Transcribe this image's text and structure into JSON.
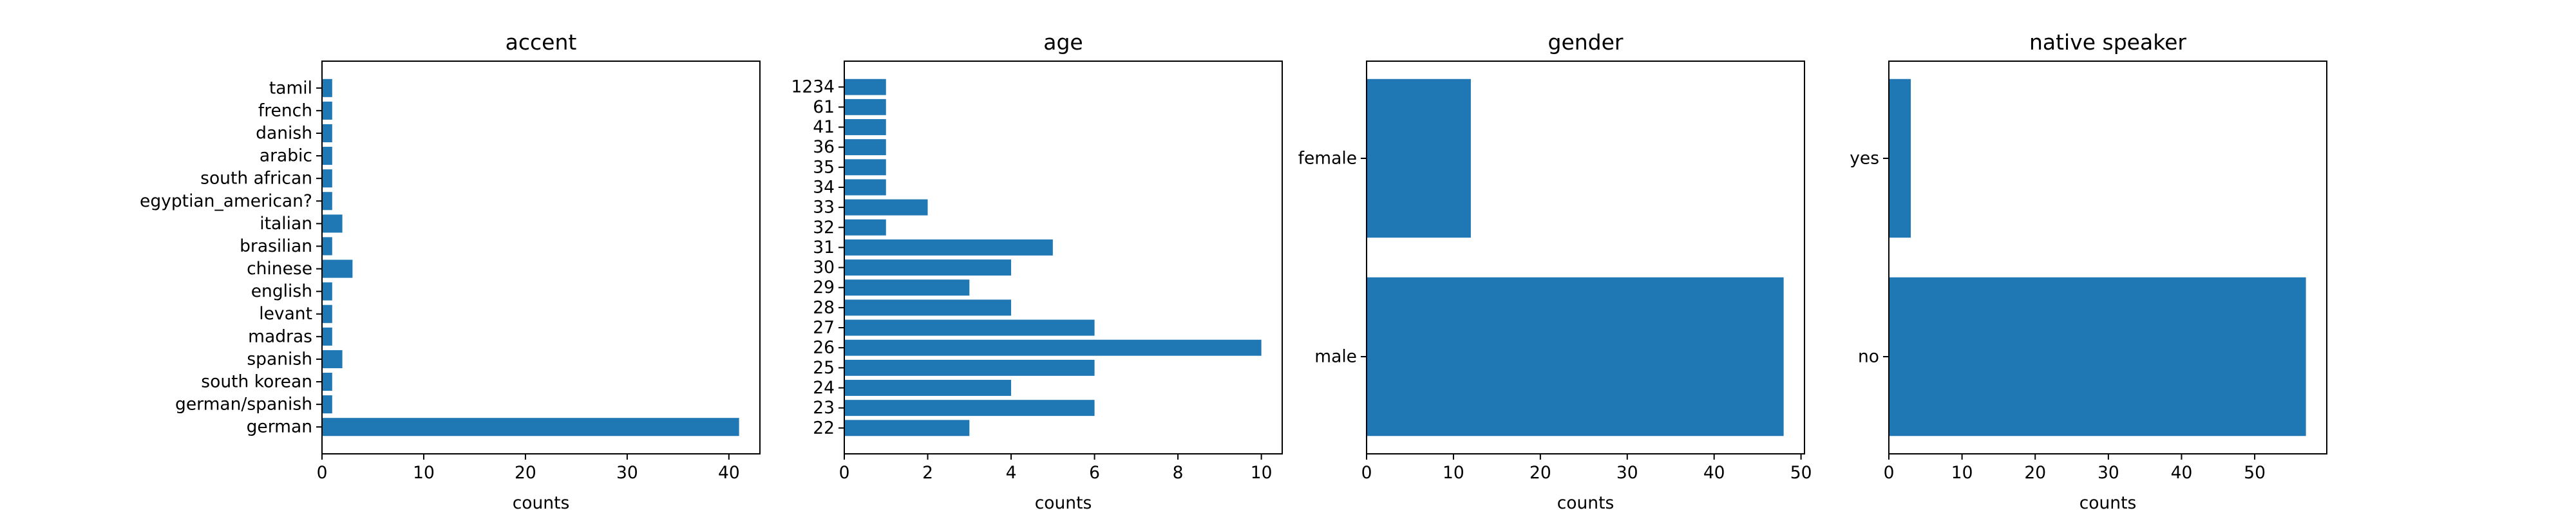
{
  "colors": {
    "bar": "#1f77b4",
    "axis": "#000000",
    "background": "#ffffff"
  },
  "chart_data": [
    {
      "type": "bar",
      "orientation": "horizontal",
      "title": "accent",
      "xlabel": "counts",
      "ylabel": "",
      "categories": [
        "german",
        "german/spanish",
        "south korean",
        "spanish",
        "madras",
        "levant",
        "english",
        "chinese",
        "brasilian",
        "italian",
        "egyptian_american?",
        "south african",
        "arabic",
        "danish",
        "french",
        "tamil"
      ],
      "values": [
        41,
        1,
        1,
        2,
        1,
        1,
        1,
        3,
        1,
        2,
        1,
        1,
        1,
        1,
        1,
        1
      ],
      "xlim": [
        0,
        43.05
      ],
      "xticks": [
        0,
        10,
        20,
        30,
        40
      ],
      "grid": false
    },
    {
      "type": "bar",
      "orientation": "horizontal",
      "title": "age",
      "xlabel": "counts",
      "ylabel": "",
      "categories": [
        "22",
        "23",
        "24",
        "25",
        "26",
        "27",
        "28",
        "29",
        "30",
        "31",
        "32",
        "33",
        "34",
        "35",
        "36",
        "41",
        "61",
        "1234"
      ],
      "values": [
        3,
        6,
        4,
        6,
        10,
        6,
        4,
        3,
        4,
        5,
        1,
        2,
        1,
        1,
        1,
        1,
        1,
        1
      ],
      "xlim": [
        0,
        10.5
      ],
      "xticks": [
        0,
        2,
        4,
        6,
        8,
        10
      ],
      "grid": false
    },
    {
      "type": "bar",
      "orientation": "horizontal",
      "title": "gender",
      "xlabel": "counts",
      "ylabel": "",
      "categories": [
        "male",
        "female"
      ],
      "values": [
        48,
        12
      ],
      "xlim": [
        0,
        50.4
      ],
      "xticks": [
        0,
        10,
        20,
        30,
        40,
        50
      ],
      "grid": false
    },
    {
      "type": "bar",
      "orientation": "horizontal",
      "title": "native speaker",
      "xlabel": "counts",
      "ylabel": "",
      "categories": [
        "no",
        "yes"
      ],
      "values": [
        57,
        3
      ],
      "xlim": [
        0,
        59.85
      ],
      "xticks": [
        0,
        10,
        20,
        30,
        40,
        50
      ],
      "grid": false
    }
  ]
}
